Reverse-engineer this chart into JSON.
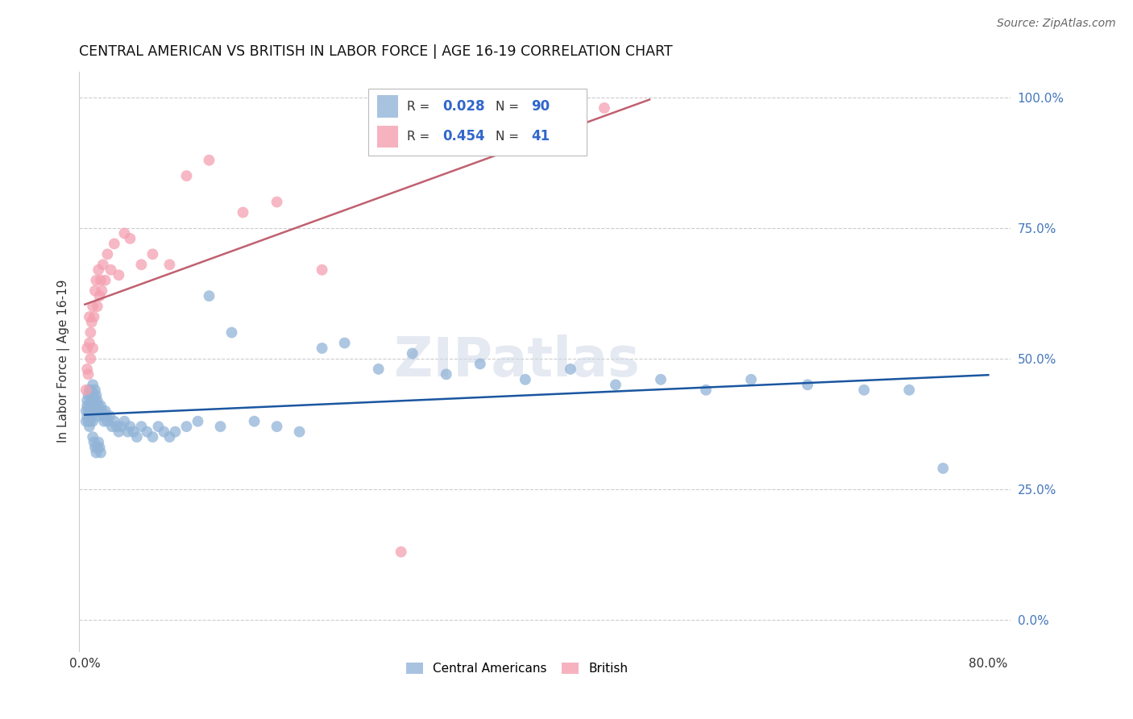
{
  "title": "CENTRAL AMERICAN VS BRITISH IN LABOR FORCE | AGE 16-19 CORRELATION CHART",
  "source": "Source: ZipAtlas.com",
  "ylabel_label": "In Labor Force | Age 16-19",
  "legend1_label": "Central Americans",
  "legend2_label": "British",
  "r1": 0.028,
  "n1": 90,
  "r2": 0.454,
  "n2": 41,
  "blue_color": "#92B4D7",
  "pink_color": "#F4A0B0",
  "line_blue": "#1A56A0",
  "line_pink": "#C06070",
  "watermark_text": "ZIPatlas",
  "xmin": 0.0,
  "xmax": 0.8,
  "ymin": 0.0,
  "ymax": 1.05,
  "blue_x": [
    0.001,
    0.001,
    0.002,
    0.002,
    0.002,
    0.003,
    0.003,
    0.003,
    0.004,
    0.004,
    0.004,
    0.004,
    0.005,
    0.005,
    0.005,
    0.006,
    0.006,
    0.006,
    0.007,
    0.007,
    0.007,
    0.007,
    0.008,
    0.008,
    0.009,
    0.009,
    0.01,
    0.01,
    0.011,
    0.011,
    0.012,
    0.012,
    0.013,
    0.014,
    0.015,
    0.016,
    0.017,
    0.018,
    0.019,
    0.02,
    0.022,
    0.024,
    0.026,
    0.028,
    0.03,
    0.032,
    0.035,
    0.038,
    0.04,
    0.043,
    0.046,
    0.05,
    0.055,
    0.06,
    0.065,
    0.07,
    0.075,
    0.08,
    0.09,
    0.1,
    0.11,
    0.12,
    0.13,
    0.15,
    0.17,
    0.19,
    0.21,
    0.23,
    0.26,
    0.29,
    0.32,
    0.35,
    0.39,
    0.43,
    0.47,
    0.51,
    0.55,
    0.59,
    0.64,
    0.69,
    0.73,
    0.76,
    0.007,
    0.008,
    0.009,
    0.01,
    0.011,
    0.012,
    0.013,
    0.014
  ],
  "blue_y": [
    0.4,
    0.38,
    0.42,
    0.39,
    0.41,
    0.43,
    0.4,
    0.38,
    0.44,
    0.41,
    0.39,
    0.37,
    0.43,
    0.4,
    0.38,
    0.44,
    0.42,
    0.39,
    0.45,
    0.42,
    0.4,
    0.38,
    0.43,
    0.41,
    0.44,
    0.42,
    0.43,
    0.41,
    0.42,
    0.4,
    0.41,
    0.39,
    0.4,
    0.41,
    0.4,
    0.39,
    0.38,
    0.4,
    0.39,
    0.38,
    0.39,
    0.37,
    0.38,
    0.37,
    0.36,
    0.37,
    0.38,
    0.36,
    0.37,
    0.36,
    0.35,
    0.37,
    0.36,
    0.35,
    0.37,
    0.36,
    0.35,
    0.36,
    0.37,
    0.38,
    0.62,
    0.37,
    0.55,
    0.38,
    0.37,
    0.36,
    0.52,
    0.53,
    0.48,
    0.51,
    0.47,
    0.49,
    0.46,
    0.48,
    0.45,
    0.46,
    0.44,
    0.46,
    0.45,
    0.44,
    0.44,
    0.29,
    0.35,
    0.34,
    0.33,
    0.32,
    0.33,
    0.34,
    0.33,
    0.32
  ],
  "pink_x": [
    0.001,
    0.002,
    0.002,
    0.003,
    0.004,
    0.004,
    0.005,
    0.005,
    0.006,
    0.007,
    0.007,
    0.008,
    0.009,
    0.01,
    0.011,
    0.012,
    0.013,
    0.014,
    0.015,
    0.016,
    0.018,
    0.02,
    0.023,
    0.026,
    0.03,
    0.035,
    0.04,
    0.05,
    0.06,
    0.075,
    0.09,
    0.11,
    0.14,
    0.17,
    0.21,
    0.26,
    0.32,
    0.38,
    0.42,
    0.46,
    0.28
  ],
  "pink_y": [
    0.44,
    0.48,
    0.52,
    0.47,
    0.53,
    0.58,
    0.5,
    0.55,
    0.57,
    0.52,
    0.6,
    0.58,
    0.63,
    0.65,
    0.6,
    0.67,
    0.62,
    0.65,
    0.63,
    0.68,
    0.65,
    0.7,
    0.67,
    0.72,
    0.66,
    0.74,
    0.73,
    0.68,
    0.7,
    0.68,
    0.85,
    0.88,
    0.78,
    0.8,
    0.67,
    0.97,
    0.98,
    0.99,
    0.97,
    0.98,
    0.13
  ],
  "ytick_vals": [
    0.0,
    0.25,
    0.5,
    0.75,
    1.0
  ],
  "ytick_labels": [
    "0.0%",
    "25.0%",
    "50.0%",
    "75.0%",
    "100.0%"
  ],
  "xtick_vals": [
    0.0,
    0.8
  ],
  "xtick_labels": [
    "0.0%",
    "80.0%"
  ]
}
